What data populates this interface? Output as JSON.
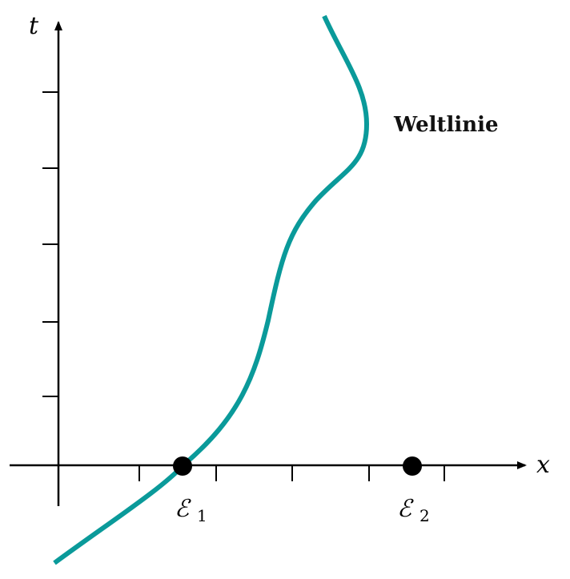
{
  "axes": {
    "x_label": "x",
    "t_label": "t"
  },
  "worldline": {
    "label": "Weltlinie",
    "color": "#0a9a9a"
  },
  "events": [
    {
      "symbol": "ℰ",
      "subscript": "1"
    },
    {
      "symbol": "ℰ",
      "subscript": "2"
    }
  ]
}
